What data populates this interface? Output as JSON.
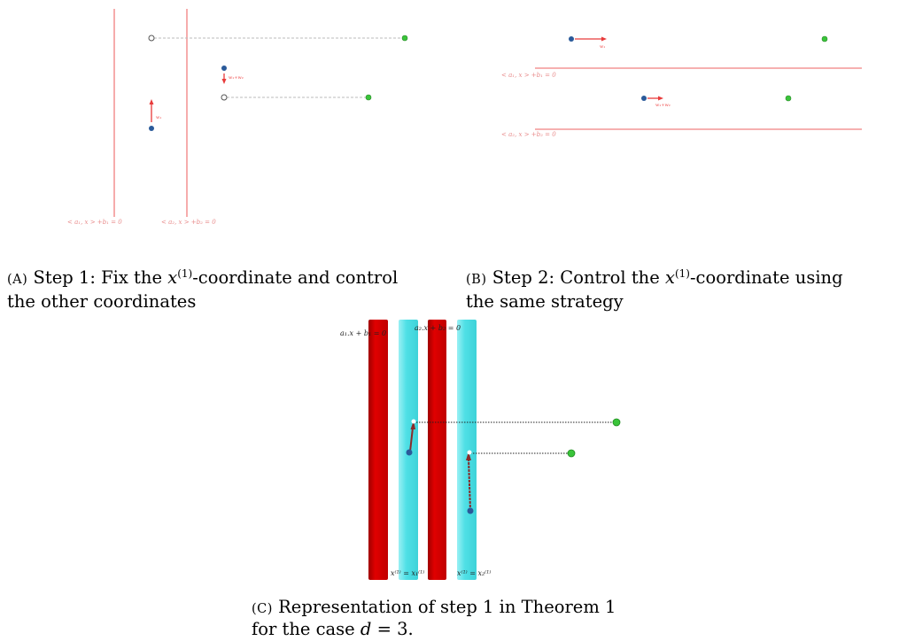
{
  "figure": {
    "panel_a": {
      "line_label_1": "< a₁, x > +b₁ = 0",
      "line_label_2": "< a₂, x > +b₂ = 0",
      "vector_label_1": "w₁",
      "vector_label_2": "w₁+w₂",
      "caption_tag": "(A)",
      "caption_line1_pre": "Step 1: Fix the ",
      "caption_var": "x",
      "caption_sup": "(1)",
      "caption_line1_post": "-coordinate and control",
      "caption_line2": "the other coordinates"
    },
    "panel_b": {
      "line_label_1": "< a₁, x > +b₁ = 0",
      "line_label_2": "< a₂, x > +b₂ = 0",
      "vector_label_1": "w₁",
      "vector_label_2": "w₁+w₂",
      "caption_tag": "(B)",
      "caption_line1_pre": "Step 2:  Control the ",
      "caption_var": "x",
      "caption_sup": "(1)",
      "caption_line1_post": "-coordinate using",
      "caption_line2": "the same strategy"
    },
    "panel_c": {
      "plane_label_1": "a₁.x + b₁ = 0",
      "plane_label_2": "a₂.x + b₂ = 0",
      "plane_label_3": "x⁽¹⁾ = x₁⁽¹⁾",
      "plane_label_4": "x⁽¹⁾ = x₂⁽¹⁾",
      "caption_tag": "(C)",
      "caption_line1": " Representation of step 1 in Theorem 1",
      "caption_line2_pre": "for the case ",
      "caption_var": "d",
      "caption_line2_post": " = 3."
    },
    "colors": {
      "hyperplane": "#f08080",
      "blue_point": "#2a5a9a",
      "green_point": "#3ac43a",
      "vector": "#e83a3a",
      "red_slab": "#d80000",
      "cyan_slab": "#4fe0e6"
    }
  }
}
